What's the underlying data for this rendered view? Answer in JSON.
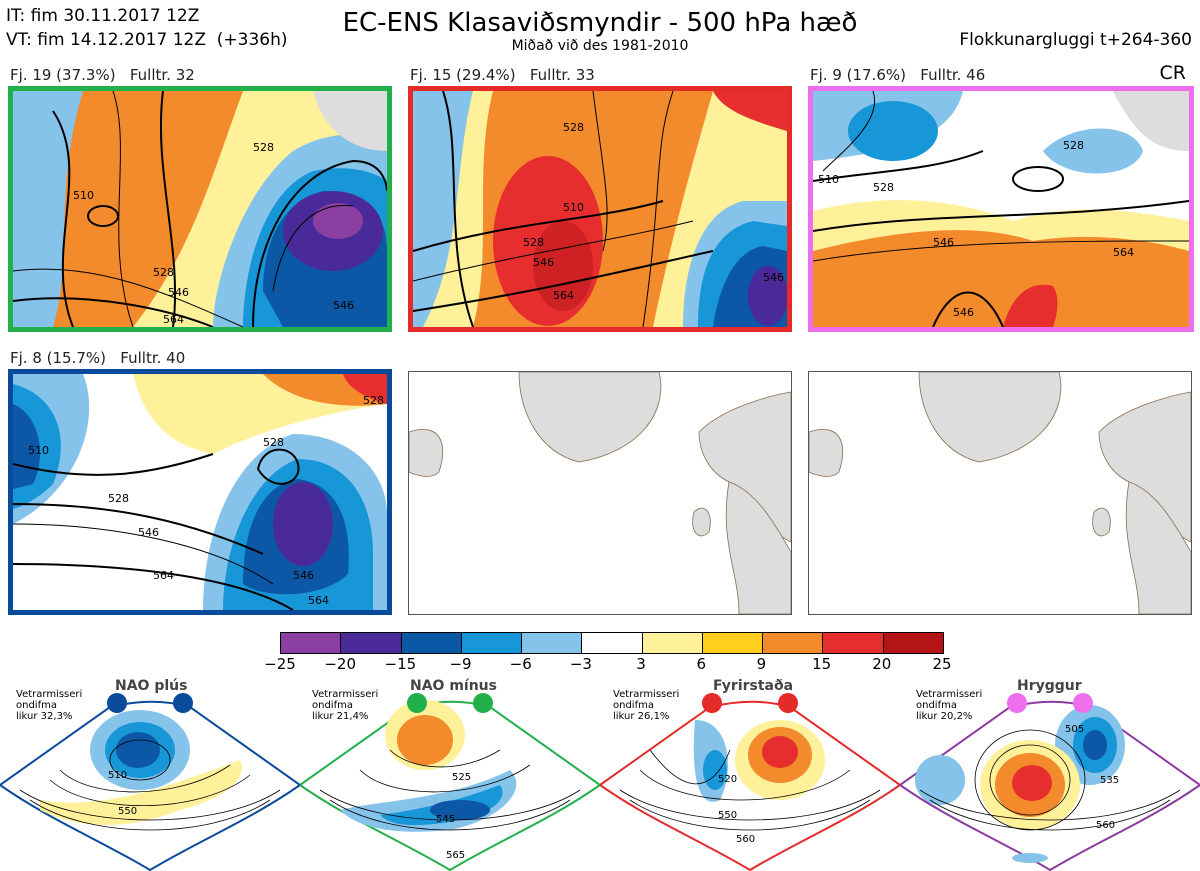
{
  "header": {
    "it_line": "IT: fim 30.11.2017 12Z",
    "vt_line": "VT: fim 14.12.2017 12Z  (+336h)",
    "title": "EC-ENS Klasaviðsmyndir - 500 hPa hæð",
    "subtitle": "Miðað við des 1981-2010",
    "window": "Flokkunargluggi t+264-360",
    "cr": "CR"
  },
  "panels": [
    {
      "label": "Fj. 19 (37.3%)   Fulltr. 32",
      "border_color": "#22b04a",
      "contours": [
        "510",
        "528",
        "546",
        "564",
        "528",
        "546"
      ]
    },
    {
      "label": "Fj. 15 (29.4%)   Fulltr. 33",
      "border_color": "#e52a2a",
      "contours": [
        "528",
        "510",
        "528",
        "546",
        "564",
        "546"
      ]
    },
    {
      "label": "Fj. 9 (17.6%)   Fulltr. 46",
      "border_color": "#ee6fee",
      "contours": [
        "510",
        "528",
        "528",
        "546",
        "564",
        "546"
      ]
    },
    {
      "label": "Fj. 8 (15.7%)   Fulltr. 40",
      "border_color": "#0a4a9a",
      "contours": [
        "510",
        "528",
        "546",
        "564",
        "528",
        "546",
        "564"
      ]
    }
  ],
  "colorbar": {
    "ticks": [
      "−25",
      "−20",
      "−15",
      "−9",
      "−6",
      "−3",
      "3",
      "6",
      "9",
      "15",
      "20",
      "25"
    ],
    "colors": [
      "#8b3fa0",
      "#4a2a98",
      "#0d58a6",
      "#1796d8",
      "#86c3ea",
      "#ffffff",
      "#fff09a",
      "#ffce1e",
      "#f38a2c",
      "#e62e2e",
      "#b51417"
    ]
  },
  "regimes": [
    {
      "name": "NAO plús",
      "stat": "Vetrarmisseri\nondifma\nlikur 32,3%",
      "color": "#0a4a9a",
      "contours": [
        "510",
        "550"
      ]
    },
    {
      "name": "NAO mínus",
      "stat": "Vetrarmisseri\nondifma\nlikur 21,4%",
      "color": "#22b04a",
      "contours": [
        "525",
        "545",
        "565"
      ]
    },
    {
      "name": "Fyrirstaða",
      "stat": "Vetrarmisseri\nondifma\nlikur 26,1%",
      "color": "#e52a2a",
      "contours": [
        "520",
        "550",
        "560"
      ]
    },
    {
      "name": "Hryggur",
      "stat": "Vetrarmisseri\nondifma\nlikur 20,2%",
      "color": "#ee6fee",
      "contours": [
        "505",
        "535",
        "560"
      ]
    }
  ]
}
